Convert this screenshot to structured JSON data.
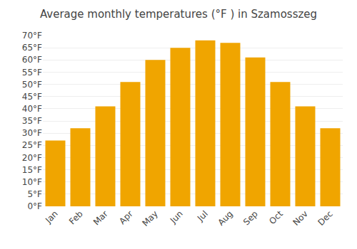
{
  "chart_data": {
    "type": "bar",
    "title": "Average monthly temperatures (°F ) in Szamosszeg",
    "categories": [
      "Jan",
      "Feb",
      "Mar",
      "Apr",
      "May",
      "Jun",
      "Jul",
      "Aug",
      "Sep",
      "Oct",
      "Nov",
      "Dec"
    ],
    "values": [
      27,
      32,
      41,
      51,
      60,
      65,
      68,
      67,
      61,
      51,
      41,
      32
    ],
    "color": "#F0A500",
    "ylim": [
      0,
      70
    ],
    "yticks": [
      {
        "value": 0,
        "label": "0°F"
      },
      {
        "value": 5,
        "label": "5°F"
      },
      {
        "value": 10,
        "label": "10°F"
      },
      {
        "value": 15,
        "label": "15°F"
      },
      {
        "value": 20,
        "label": "20°F"
      },
      {
        "value": 25,
        "label": "25°F"
      },
      {
        "value": 30,
        "label": "30°F"
      },
      {
        "value": 35,
        "label": "35°F"
      },
      {
        "value": 40,
        "label": "40°F"
      },
      {
        "value": 45,
        "label": "45°F"
      },
      {
        "value": 50,
        "label": "50°F"
      },
      {
        "value": 55,
        "label": "55°F"
      },
      {
        "value": 60,
        "label": "60°F"
      },
      {
        "value": 65,
        "label": "65°F"
      },
      {
        "value": 70,
        "label": "70°F"
      }
    ],
    "grid": true
  }
}
